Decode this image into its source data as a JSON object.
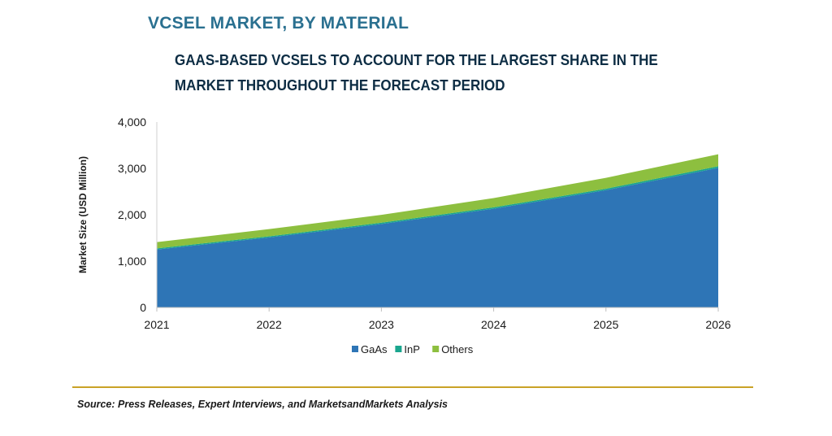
{
  "header": {
    "title": "VCSEL MARKET, BY MATERIAL",
    "subtitle": "GAAS-BASED VCSELS TO ACCOUNT FOR THE LARGEST SHARE IN THE MARKET THROUGHOUT THE FORECAST PERIOD"
  },
  "footer": {
    "source": "Source: Press Releases, Expert Interviews, and MarketsandMarkets Analysis"
  },
  "chart_data": {
    "type": "area",
    "stacked": true,
    "ylabel": "Market Size (USD Million)",
    "xlabel": "",
    "x": [
      "2021",
      "2022",
      "2023",
      "2024",
      "2025",
      "2026"
    ],
    "yticks": [
      "0",
      "1,000",
      "2,000",
      "3,000",
      "4,000"
    ],
    "ylim": [
      0,
      4000
    ],
    "legend_position": "bottom",
    "grid": false,
    "series": [
      {
        "name": "GaAs",
        "color": "#2e75b6",
        "values": [
          1250,
          1510,
          1800,
          2130,
          2530,
          3010
        ]
      },
      {
        "name": "InP",
        "color": "#1aa68e",
        "values": [
          25,
          25,
          28,
          30,
          32,
          35
        ]
      },
      {
        "name": "Others",
        "color": "#8dbf3f",
        "values": [
          135,
          155,
          170,
          200,
          235,
          260
        ]
      }
    ]
  }
}
